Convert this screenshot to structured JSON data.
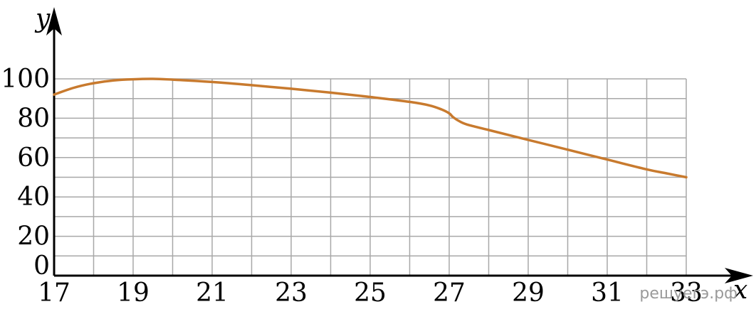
{
  "chart_data": {
    "type": "line",
    "xlabel": "x",
    "ylabel": "y",
    "xlim": [
      17,
      33
    ],
    "ylim": [
      0,
      100
    ],
    "grid": true,
    "x_grid_step": 1,
    "y_grid_step": 10,
    "x_ticks": [
      17,
      19,
      21,
      23,
      25,
      27,
      29,
      31,
      33
    ],
    "y_ticks": [
      0,
      20,
      40,
      60,
      80,
      100
    ],
    "series": [
      {
        "color": "#c87a2e",
        "x": [
          17,
          17.5,
          18,
          18.5,
          19,
          19.5,
          20,
          21,
          22,
          23,
          24,
          25,
          26,
          26.5,
          26.8,
          27,
          27.1,
          27.3,
          27.5,
          28,
          29,
          30,
          31,
          32,
          32.5,
          33
        ],
        "y": [
          92,
          95.5,
          97.8,
          99.2,
          99.8,
          100,
          99.6,
          98.4,
          96.8,
          95,
          93,
          90.8,
          88.3,
          86.5,
          84.5,
          82.5,
          80.5,
          78,
          76.5,
          74,
          69,
          64,
          59,
          54,
          52,
          50
        ]
      }
    ]
  },
  "watermark": "решуегэ.рф"
}
